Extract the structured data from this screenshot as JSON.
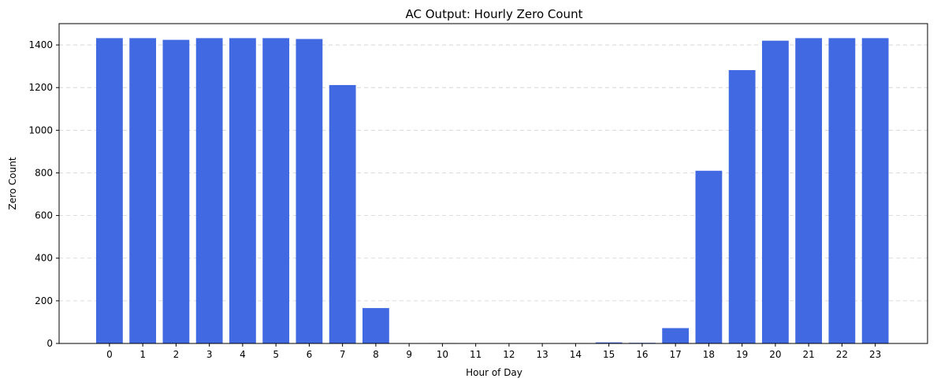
{
  "chart_data": {
    "type": "bar",
    "title": "AC Output: Hourly Zero Count",
    "xlabel": "Hour of Day",
    "ylabel": "Zero Count",
    "categories": [
      "0",
      "1",
      "2",
      "3",
      "4",
      "5",
      "6",
      "7",
      "8",
      "9",
      "10",
      "11",
      "12",
      "13",
      "14",
      "15",
      "16",
      "17",
      "18",
      "19",
      "20",
      "21",
      "22",
      "23"
    ],
    "values": [
      1432,
      1432,
      1424,
      1432,
      1432,
      1432,
      1428,
      1212,
      166,
      0,
      2,
      0,
      0,
      0,
      2,
      5,
      3,
      72,
      810,
      1282,
      1420,
      1432,
      1432,
      1432
    ],
    "ylim": [
      0,
      1500
    ],
    "yticks": [
      0,
      200,
      400,
      600,
      800,
      1000,
      1200,
      1400
    ],
    "grid": "y-dashed",
    "legend": "none",
    "colors": {
      "bar": "#4169e1",
      "grid": "#d0d0d0",
      "axis": "#000000"
    }
  }
}
